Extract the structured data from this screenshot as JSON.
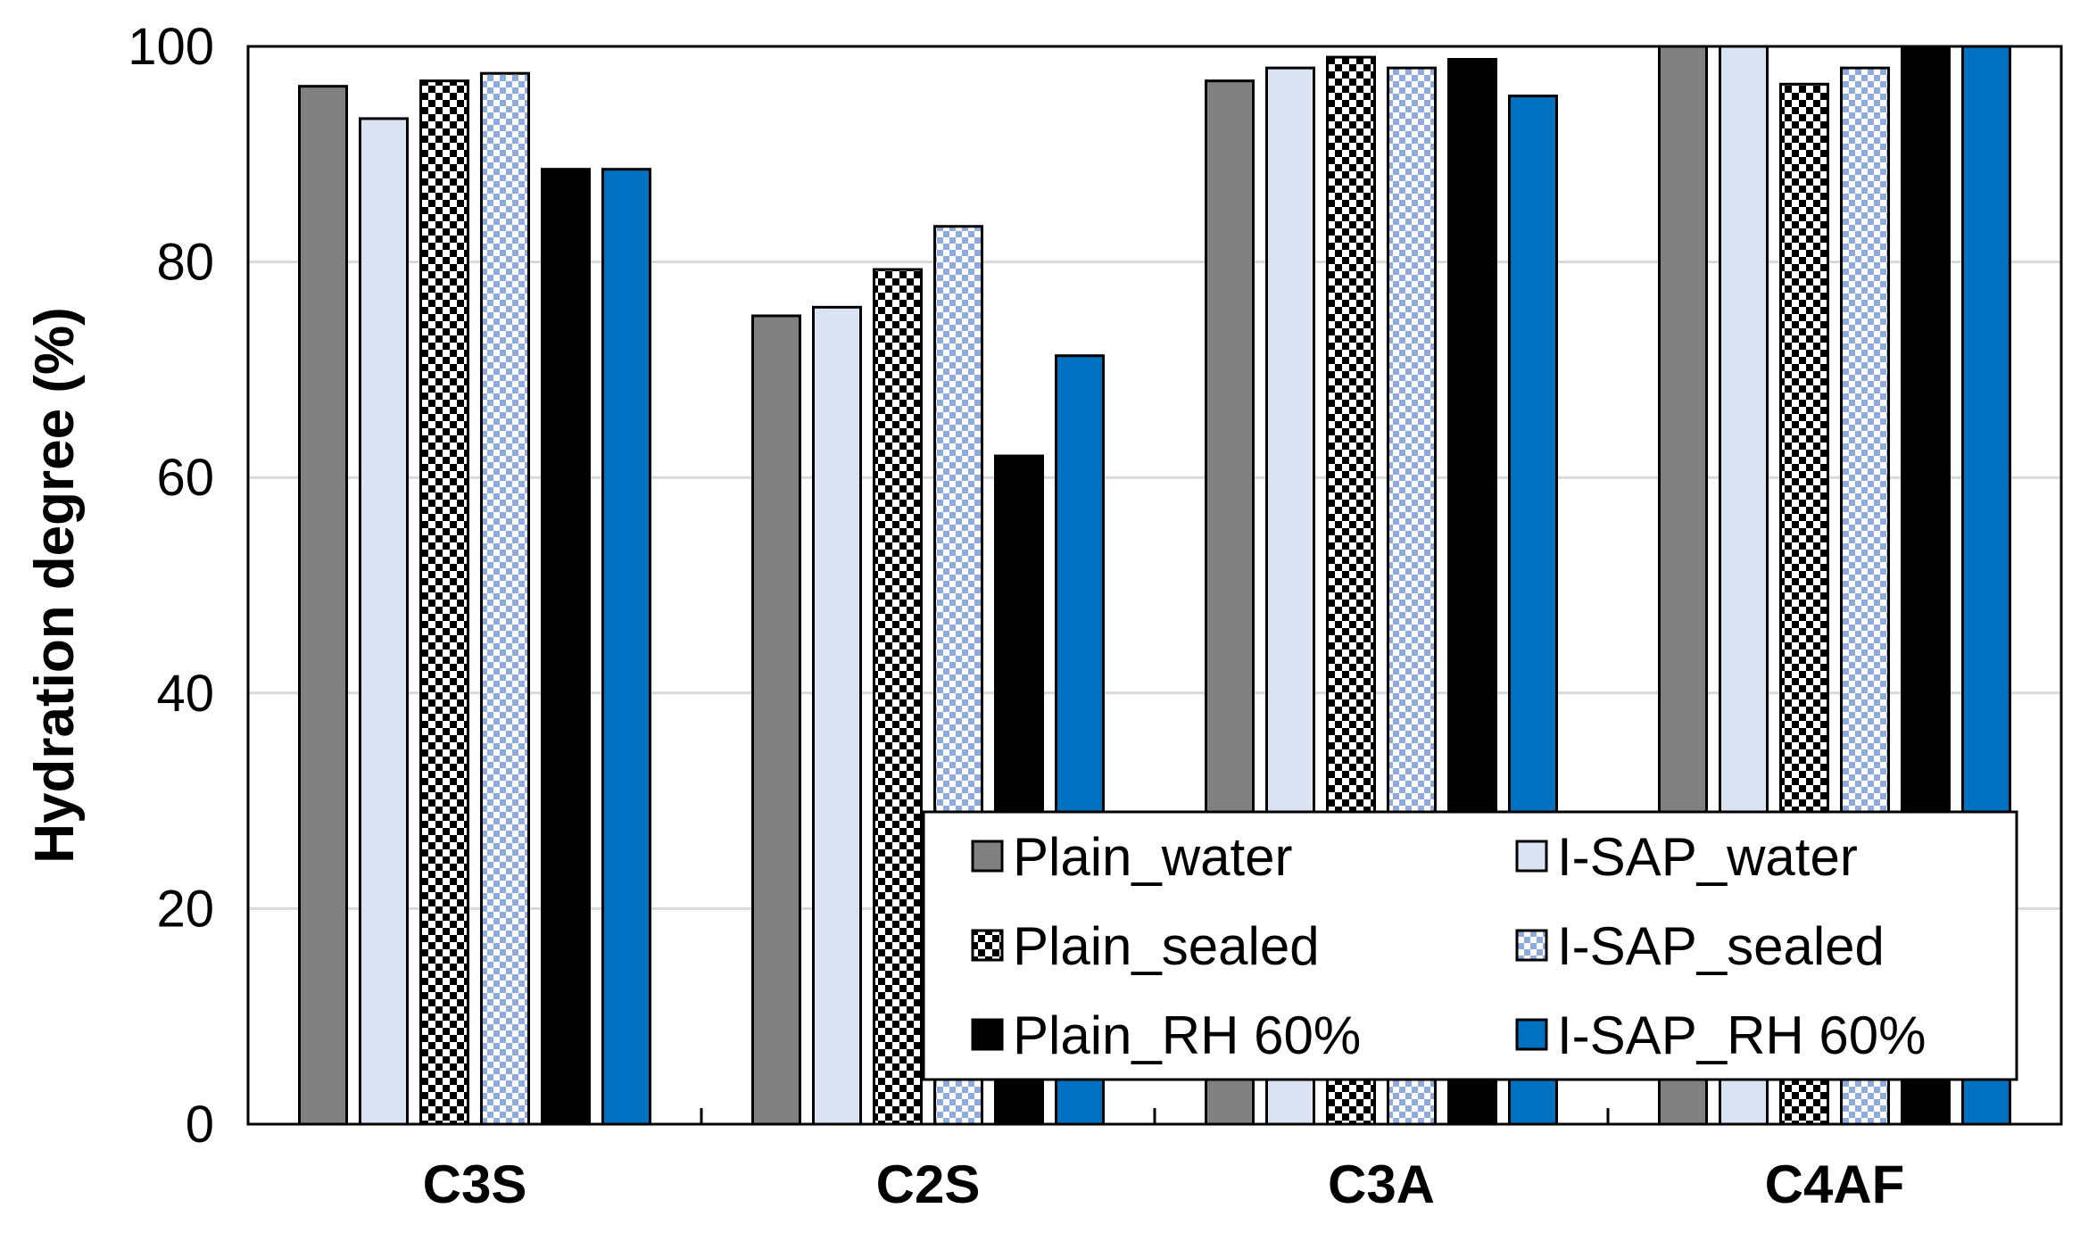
{
  "chart_data": {
    "type": "bar",
    "title": "",
    "xlabel": "",
    "ylabel": "Hydration degree (%)",
    "ylim": [
      0,
      100
    ],
    "yticks": [
      "0",
      "20",
      "40",
      "60",
      "80",
      "100"
    ],
    "grid": true,
    "legend_position": "bottom-right",
    "categories": [
      "C3S",
      "C2S",
      "C3A",
      "C4AF"
    ],
    "series": [
      {
        "name": "Plain_water",
        "values": [
          96.3,
          75.0,
          96.8,
          100.0
        ],
        "color": "#808080",
        "pattern": "solid"
      },
      {
        "name": "I-SAP_water",
        "values": [
          93.3,
          75.8,
          98.0,
          100.0
        ],
        "color": "#dae3f3",
        "pattern": "solid"
      },
      {
        "name": "Plain_sealed",
        "values": [
          96.8,
          79.3,
          99.0,
          96.5
        ],
        "color": "#000000",
        "pattern": "checker-black"
      },
      {
        "name": "I-SAP_sealed",
        "values": [
          97.5,
          83.3,
          98.0,
          98.0
        ],
        "color": "#8faadc",
        "pattern": "checker-blue"
      },
      {
        "name": "Plain_RH 60%",
        "values": [
          88.6,
          62.0,
          98.8,
          100.0
        ],
        "color": "#000000",
        "pattern": "solid"
      },
      {
        "name": "I-SAP_RH 60%",
        "values": [
          88.6,
          71.3,
          95.4,
          100.0
        ],
        "color": "#0070c0",
        "pattern": "solid"
      }
    ]
  }
}
